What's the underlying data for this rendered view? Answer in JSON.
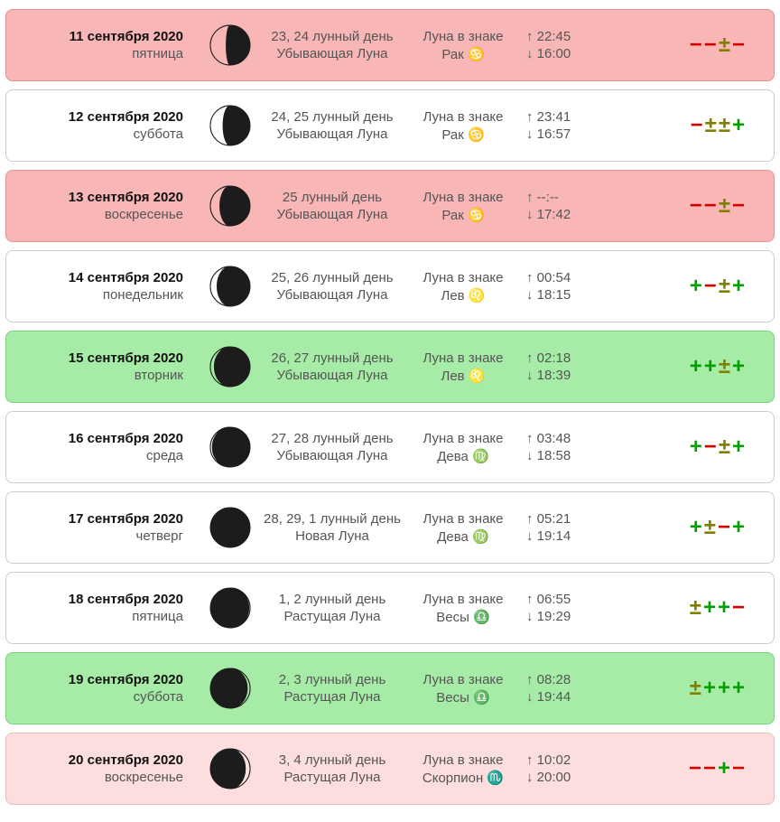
{
  "colors": {
    "bg_pink": "#f8b6b6",
    "bg_white": "#ffffff",
    "bg_green": "#a6eca6",
    "bg_lpink": "#fddede",
    "border_pink": "#e99090",
    "border_gray": "#cccccc",
    "border_green": "#7cd47c",
    "border_lpink": "#e9bcbc",
    "moon_fill": "#1c1c1c",
    "moon_stroke": "#1c1c1c",
    "rating_plus": "#00a000",
    "rating_minus": "#d40000",
    "rating_pm": "#808000"
  },
  "rows": [
    {
      "date": "11 сентября 2020",
      "weekday": "пятница",
      "lunar_day": "23, 24 лунный день",
      "phase": "Убывающая Луна",
      "sign_label": "Луна в знаке",
      "sign": "Рак ♋",
      "rise": "↑ 22:45",
      "set": "↓ 16:00",
      "rating": [
        "-",
        "-",
        "±",
        "-"
      ],
      "bg": "bg_pink",
      "border": "border_pink",
      "moon_illum": 0.4,
      "moon_side": "left"
    },
    {
      "date": "12 сентября 2020",
      "weekday": "суббота",
      "lunar_day": "24, 25 лунный день",
      "phase": "Убывающая Луна",
      "sign_label": "Луна в знаке",
      "sign": "Рак ♋",
      "rise": "↑ 23:41",
      "set": "↓ 16:57",
      "rating": [
        "-",
        "±",
        "±",
        "+"
      ],
      "bg": "bg_white",
      "border": "border_gray",
      "moon_illum": 0.32,
      "moon_side": "left"
    },
    {
      "date": "13 сентября 2020",
      "weekday": "воскресенье",
      "lunar_day": "25 лунный день",
      "phase": "Убывающая Луна",
      "sign_label": "Луна в знаке",
      "sign": "Рак ♋",
      "rise": "↑ --:--",
      "set": "↓ 17:42",
      "rating": [
        "-",
        "-",
        "±",
        "-"
      ],
      "bg": "bg_pink",
      "border": "border_pink",
      "moon_illum": 0.24,
      "moon_side": "left"
    },
    {
      "date": "14 сентября 2020",
      "weekday": "понедельник",
      "lunar_day": "25, 26 лунный день",
      "phase": "Убывающая Луна",
      "sign_label": "Луна в знаке",
      "sign": "Лев ♌",
      "rise": "↑ 00:54",
      "set": "↓ 18:15",
      "rating": [
        "+",
        "-",
        "±",
        "+"
      ],
      "bg": "bg_white",
      "border": "border_gray",
      "moon_illum": 0.17,
      "moon_side": "left"
    },
    {
      "date": "15 сентября 2020",
      "weekday": "вторник",
      "lunar_day": "26, 27 лунный день",
      "phase": "Убывающая Луна",
      "sign_label": "Луна в знаке",
      "sign": "Лев ♌",
      "rise": "↑ 02:18",
      "set": "↓ 18:39",
      "rating": [
        "+",
        "+",
        "±",
        "+"
      ],
      "bg": "bg_green",
      "border": "border_green",
      "moon_illum": 0.1,
      "moon_side": "left"
    },
    {
      "date": "16 сентября 2020",
      "weekday": "среда",
      "lunar_day": "27, 28 лунный день",
      "phase": "Убывающая Луна",
      "sign_label": "Луна в знаке",
      "sign": "Дева ♍",
      "rise": "↑ 03:48",
      "set": "↓ 18:58",
      "rating": [
        "+",
        "-",
        "±",
        "+"
      ],
      "bg": "bg_white",
      "border": "border_gray",
      "moon_illum": 0.05,
      "moon_side": "left"
    },
    {
      "date": "17 сентября 2020",
      "weekday": "четверг",
      "lunar_day": "28, 29, 1 лунный день",
      "phase": "Новая Луна",
      "sign_label": "Луна в знаке",
      "sign": "Дева ♍",
      "rise": "↑ 05:21",
      "set": "↓ 19:14",
      "rating": [
        "+",
        "±",
        "-",
        "+"
      ],
      "bg": "bg_white",
      "border": "border_gray",
      "moon_illum": 0.0,
      "moon_side": "none"
    },
    {
      "date": "18 сентября 2020",
      "weekday": "пятница",
      "lunar_day": "1, 2 лунный день",
      "phase": "Растущая Луна",
      "sign_label": "Луна в знаке",
      "sign": "Весы ♎",
      "rise": "↑ 06:55",
      "set": "↓ 19:29",
      "rating": [
        "±",
        "+",
        "+",
        "-"
      ],
      "bg": "bg_white",
      "border": "border_gray",
      "moon_illum": 0.03,
      "moon_side": "right"
    },
    {
      "date": "19 сентября 2020",
      "weekday": "суббота",
      "lunar_day": "2, 3 лунный день",
      "phase": "Растущая Луна",
      "sign_label": "Луна в знаке",
      "sign": "Весы ♎",
      "rise": "↑ 08:28",
      "set": "↓ 19:44",
      "rating": [
        "±",
        "+",
        "+",
        "+"
      ],
      "bg": "bg_green",
      "border": "border_green",
      "moon_illum": 0.07,
      "moon_side": "right"
    },
    {
      "date": "20 сентября 2020",
      "weekday": "воскресенье",
      "lunar_day": "3, 4 лунный день",
      "phase": "Растущая Луна",
      "sign_label": "Луна в знаке",
      "sign": "Скорпион ♏",
      "rise": "↑ 10:02",
      "set": "↓ 20:00",
      "rating": [
        "-",
        "-",
        "+",
        "-"
      ],
      "bg": "bg_lpink",
      "border": "border_lpink",
      "moon_illum": 0.12,
      "moon_side": "right"
    }
  ]
}
